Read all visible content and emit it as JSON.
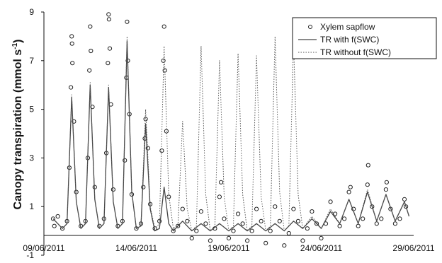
{
  "chart_data": {
    "type": "line",
    "title": "",
    "xlabel": "",
    "ylabel": "Canopy transpiration (mmol s",
    "ylabel_superscript": "-1",
    "ylabel_close": ")",
    "x_type": "date",
    "xlim": [
      "2011-06-09",
      "2011-06-29"
    ],
    "ylim": [
      -1,
      9
    ],
    "x_ticks": [
      "09/06/2011",
      "14/06/2011",
      "19/06/2011",
      "24/06/2011",
      "29/06/2011"
    ],
    "y_ticks": [
      "-1",
      "1",
      "3",
      "5",
      "7",
      "9"
    ],
    "grid": false,
    "legend_position": "top-right",
    "series": [
      {
        "name": "Xylem sapflow",
        "style": "circle-markers",
        "color": "#222222",
        "points": [
          [
            "2011-06-09T12:00",
            0.5
          ],
          [
            "2011-06-09T13:30",
            0.2
          ],
          [
            "2011-06-09T18:00",
            0.6
          ],
          [
            "2011-06-10T00:00",
            0.1
          ],
          [
            "2011-06-10T06:00",
            0.4
          ],
          [
            "2011-06-10T09:00",
            2.6
          ],
          [
            "2011-06-10T11:00",
            5.9
          ],
          [
            "2011-06-10T12:00",
            8.0
          ],
          [
            "2011-06-10T12:30",
            7.7
          ],
          [
            "2011-06-10T13:00",
            6.9
          ],
          [
            "2011-06-10T15:00",
            4.5
          ],
          [
            "2011-06-10T18:00",
            1.6
          ],
          [
            "2011-06-11T00:00",
            0.2
          ],
          [
            "2011-06-11T06:00",
            0.4
          ],
          [
            "2011-06-11T09:00",
            3.0
          ],
          [
            "2011-06-11T11:00",
            6.6
          ],
          [
            "2011-06-11T12:00",
            8.4
          ],
          [
            "2011-06-11T13:00",
            7.4
          ],
          [
            "2011-06-11T15:00",
            5.1
          ],
          [
            "2011-06-11T18:00",
            1.8
          ],
          [
            "2011-06-12T00:00",
            0.2
          ],
          [
            "2011-06-12T06:00",
            0.5
          ],
          [
            "2011-06-12T09:00",
            3.2
          ],
          [
            "2011-06-12T11:00",
            6.9
          ],
          [
            "2011-06-12T12:00",
            8.9
          ],
          [
            "2011-06-12T12:30",
            8.7
          ],
          [
            "2011-06-12T13:30",
            7.5
          ],
          [
            "2011-06-12T15:00",
            5.2
          ],
          [
            "2011-06-12T18:00",
            1.7
          ],
          [
            "2011-06-13T00:00",
            0.2
          ],
          [
            "2011-06-13T06:00",
            0.4
          ],
          [
            "2011-06-13T09:00",
            2.9
          ],
          [
            "2011-06-13T11:00",
            6.3
          ],
          [
            "2011-06-13T12:00",
            8.6
          ],
          [
            "2011-06-13T13:00",
            7.0
          ],
          [
            "2011-06-13T15:00",
            4.8
          ],
          [
            "2011-06-13T18:00",
            1.5
          ],
          [
            "2011-06-14T00:00",
            0.1
          ],
          [
            "2011-06-14T06:00",
            0.3
          ],
          [
            "2011-06-14T09:00",
            1.8
          ],
          [
            "2011-06-14T11:00",
            3.8
          ],
          [
            "2011-06-14T12:00",
            4.6
          ],
          [
            "2011-06-14T15:00",
            3.4
          ],
          [
            "2011-06-14T18:00",
            1.1
          ],
          [
            "2011-06-15T00:00",
            0.1
          ],
          [
            "2011-06-15T06:00",
            0.4
          ],
          [
            "2011-06-15T09:00",
            3.3
          ],
          [
            "2011-06-15T11:00",
            7.0
          ],
          [
            "2011-06-15T12:00",
            8.4
          ],
          [
            "2011-06-15T13:00",
            6.6
          ],
          [
            "2011-06-15T15:00",
            4.1
          ],
          [
            "2011-06-15T18:00",
            1.4
          ],
          [
            "2011-06-16T00:00",
            0.0
          ],
          [
            "2011-06-16T06:00",
            0.2
          ],
          [
            "2011-06-16T12:00",
            0.9
          ],
          [
            "2011-06-16T18:00",
            0.4
          ],
          [
            "2011-06-17T00:00",
            -0.3
          ],
          [
            "2011-06-17T06:00",
            0.0
          ],
          [
            "2011-06-17T12:00",
            0.8
          ],
          [
            "2011-06-17T18:00",
            0.3
          ],
          [
            "2011-06-18T00:00",
            -0.4
          ],
          [
            "2011-06-18T06:00",
            0.1
          ],
          [
            "2011-06-18T12:00",
            1.4
          ],
          [
            "2011-06-18T14:00",
            2.0
          ],
          [
            "2011-06-18T18:00",
            0.5
          ],
          [
            "2011-06-19T00:00",
            -0.3
          ],
          [
            "2011-06-19T06:00",
            0.0
          ],
          [
            "2011-06-19T12:00",
            0.7
          ],
          [
            "2011-06-19T18:00",
            0.3
          ],
          [
            "2011-06-20T00:00",
            -0.4
          ],
          [
            "2011-06-20T06:00",
            0.0
          ],
          [
            "2011-06-20T12:00",
            0.9
          ],
          [
            "2011-06-20T18:00",
            0.4
          ],
          [
            "2011-06-21T00:00",
            -0.5
          ],
          [
            "2011-06-21T06:00",
            0.0
          ],
          [
            "2011-06-21T12:00",
            1.0
          ],
          [
            "2011-06-21T18:00",
            0.4
          ],
          [
            "2011-06-22T00:00",
            -0.6
          ],
          [
            "2011-06-22T06:00",
            -0.1
          ],
          [
            "2011-06-22T12:00",
            0.9
          ],
          [
            "2011-06-22T18:00",
            0.4
          ],
          [
            "2011-06-23T00:00",
            -0.4
          ],
          [
            "2011-06-23T06:00",
            0.1
          ],
          [
            "2011-06-23T12:00",
            0.8
          ],
          [
            "2011-06-23T18:00",
            0.3
          ],
          [
            "2011-06-24T00:00",
            -0.3
          ],
          [
            "2011-06-24T06:00",
            0.3
          ],
          [
            "2011-06-24T12:00",
            1.2
          ],
          [
            "2011-06-24T18:00",
            0.7
          ],
          [
            "2011-06-25T00:00",
            0.2
          ],
          [
            "2011-06-25T06:00",
            0.5
          ],
          [
            "2011-06-25T12:00",
            1.6
          ],
          [
            "2011-06-25T14:00",
            1.8
          ],
          [
            "2011-06-25T18:00",
            0.9
          ],
          [
            "2011-06-26T00:00",
            0.2
          ],
          [
            "2011-06-26T06:00",
            0.5
          ],
          [
            "2011-06-26T12:00",
            1.9
          ],
          [
            "2011-06-26T13:00",
            2.7
          ],
          [
            "2011-06-26T18:00",
            1.0
          ],
          [
            "2011-06-27T00:00",
            0.3
          ],
          [
            "2011-06-27T06:00",
            0.5
          ],
          [
            "2011-06-27T12:00",
            1.7
          ],
          [
            "2011-06-27T13:00",
            2.0
          ],
          [
            "2011-06-27T18:00",
            0.9
          ],
          [
            "2011-06-28T00:00",
            0.3
          ],
          [
            "2011-06-28T06:00",
            0.5
          ],
          [
            "2011-06-28T12:00",
            1.3
          ],
          [
            "2011-06-28T14:00",
            1.0
          ]
        ]
      },
      {
        "name": "TR with f(SWC)",
        "style": "solid-line",
        "color": "#444444",
        "points": [
          [
            "2011-06-09T12:00",
            0.5
          ],
          [
            "2011-06-10T00:00",
            0.1
          ],
          [
            "2011-06-10T06:00",
            0.3
          ],
          [
            "2011-06-10T12:00",
            5.5
          ],
          [
            "2011-06-10T18:00",
            1.2
          ],
          [
            "2011-06-11T00:00",
            0.1
          ],
          [
            "2011-06-11T06:00",
            0.3
          ],
          [
            "2011-06-11T12:00",
            6.0
          ],
          [
            "2011-06-11T18:00",
            1.3
          ],
          [
            "2011-06-12T00:00",
            0.1
          ],
          [
            "2011-06-12T06:00",
            0.3
          ],
          [
            "2011-06-12T12:00",
            5.9
          ],
          [
            "2011-06-12T18:00",
            1.2
          ],
          [
            "2011-06-13T00:00",
            0.1
          ],
          [
            "2011-06-13T06:00",
            0.3
          ],
          [
            "2011-06-13T12:00",
            7.8
          ],
          [
            "2011-06-13T18:00",
            1.6
          ],
          [
            "2011-06-14T00:00",
            0.1
          ],
          [
            "2011-06-14T06:00",
            0.2
          ],
          [
            "2011-06-14T12:00",
            4.4
          ],
          [
            "2011-06-14T18:00",
            0.9
          ],
          [
            "2011-06-15T00:00",
            0.0
          ],
          [
            "2011-06-15T06:00",
            0.1
          ],
          [
            "2011-06-15T12:00",
            1.8
          ],
          [
            "2011-06-15T18:00",
            0.3
          ],
          [
            "2011-06-16T00:00",
            0.0
          ],
          [
            "2011-06-16T12:00",
            0.4
          ],
          [
            "2011-06-17T00:00",
            0.0
          ],
          [
            "2011-06-17T12:00",
            0.3
          ],
          [
            "2011-06-18T00:00",
            0.0
          ],
          [
            "2011-06-18T12:00",
            0.3
          ],
          [
            "2011-06-19T00:00",
            0.0
          ],
          [
            "2011-06-19T12:00",
            0.3
          ],
          [
            "2011-06-20T00:00",
            0.0
          ],
          [
            "2011-06-20T12:00",
            0.3
          ],
          [
            "2011-06-21T00:00",
            0.0
          ],
          [
            "2011-06-21T12:00",
            0.3
          ],
          [
            "2011-06-22T00:00",
            0.0
          ],
          [
            "2011-06-22T12:00",
            0.4
          ],
          [
            "2011-06-23T00:00",
            0.1
          ],
          [
            "2011-06-23T12:00",
            0.5
          ],
          [
            "2011-06-24T00:00",
            0.1
          ],
          [
            "2011-06-24T12:00",
            0.8
          ],
          [
            "2011-06-25T00:00",
            0.3
          ],
          [
            "2011-06-25T12:00",
            1.3
          ],
          [
            "2011-06-26T00:00",
            0.3
          ],
          [
            "2011-06-26T12:00",
            1.6
          ],
          [
            "2011-06-27T00:00",
            0.4
          ],
          [
            "2011-06-27T12:00",
            1.5
          ],
          [
            "2011-06-28T00:00",
            0.4
          ],
          [
            "2011-06-28T12:00",
            1.2
          ],
          [
            "2011-06-28T18:00",
            0.6
          ]
        ]
      },
      {
        "name": "TR without f(SWC)",
        "style": "dotted-line",
        "color": "#555555",
        "points": [
          [
            "2011-06-09T12:00",
            0.5
          ],
          [
            "2011-06-10T00:00",
            0.1
          ],
          [
            "2011-06-10T06:00",
            0.3
          ],
          [
            "2011-06-10T12:00",
            5.6
          ],
          [
            "2011-06-10T18:00",
            1.2
          ],
          [
            "2011-06-11T00:00",
            0.1
          ],
          [
            "2011-06-11T06:00",
            0.3
          ],
          [
            "2011-06-11T12:00",
            6.1
          ],
          [
            "2011-06-11T18:00",
            1.3
          ],
          [
            "2011-06-12T00:00",
            0.1
          ],
          [
            "2011-06-12T06:00",
            0.3
          ],
          [
            "2011-06-12T12:00",
            6.0
          ],
          [
            "2011-06-12T18:00",
            1.2
          ],
          [
            "2011-06-13T00:00",
            0.1
          ],
          [
            "2011-06-13T06:00",
            0.3
          ],
          [
            "2011-06-13T12:00",
            8.0
          ],
          [
            "2011-06-13T18:00",
            1.6
          ],
          [
            "2011-06-14T00:00",
            0.1
          ],
          [
            "2011-06-14T06:00",
            0.2
          ],
          [
            "2011-06-14T12:00",
            5.0
          ],
          [
            "2011-06-14T18:00",
            1.0
          ],
          [
            "2011-06-15T00:00",
            0.1
          ],
          [
            "2011-06-15T06:00",
            0.3
          ],
          [
            "2011-06-15T12:00",
            7.6
          ],
          [
            "2011-06-15T18:00",
            1.5
          ],
          [
            "2011-06-16T00:00",
            0.1
          ],
          [
            "2011-06-16T06:00",
            0.2
          ],
          [
            "2011-06-16T12:00",
            4.5
          ],
          [
            "2011-06-16T18:00",
            0.9
          ],
          [
            "2011-06-17T00:00",
            0.0
          ],
          [
            "2011-06-17T06:00",
            0.2
          ],
          [
            "2011-06-17T12:00",
            7.6
          ],
          [
            "2011-06-17T18:00",
            1.5
          ],
          [
            "2011-06-18T00:00",
            0.0
          ],
          [
            "2011-06-18T06:00",
            0.2
          ],
          [
            "2011-06-18T12:00",
            7.0
          ],
          [
            "2011-06-18T18:00",
            1.4
          ],
          [
            "2011-06-19T00:00",
            0.0
          ],
          [
            "2011-06-19T06:00",
            0.2
          ],
          [
            "2011-06-19T12:00",
            7.3
          ],
          [
            "2011-06-19T18:00",
            1.5
          ],
          [
            "2011-06-20T00:00",
            0.0
          ],
          [
            "2011-06-20T06:00",
            0.2
          ],
          [
            "2011-06-20T12:00",
            7.2
          ],
          [
            "2011-06-20T18:00",
            1.4
          ],
          [
            "2011-06-21T00:00",
            0.0
          ],
          [
            "2011-06-21T06:00",
            0.2
          ],
          [
            "2011-06-21T12:00",
            8.0
          ],
          [
            "2011-06-21T18:00",
            1.6
          ],
          [
            "2011-06-22T00:00",
            0.0
          ],
          [
            "2011-06-22T06:00",
            0.2
          ],
          [
            "2011-06-22T12:00",
            7.8
          ],
          [
            "2011-06-22T18:00",
            1.5
          ],
          [
            "2011-06-23T00:00",
            0.1
          ],
          [
            "2011-06-23T12:00",
            0.6
          ],
          [
            "2011-06-24T00:00",
            0.1
          ],
          [
            "2011-06-24T12:00",
            0.9
          ],
          [
            "2011-06-25T00:00",
            0.3
          ],
          [
            "2011-06-25T12:00",
            1.3
          ],
          [
            "2011-06-26T00:00",
            0.3
          ],
          [
            "2011-06-26T12:00",
            1.7
          ],
          [
            "2011-06-27T00:00",
            0.4
          ],
          [
            "2011-06-27T12:00",
            1.5
          ],
          [
            "2011-06-28T00:00",
            0.4
          ],
          [
            "2011-06-28T12:00",
            1.2
          ],
          [
            "2011-06-28T18:00",
            0.6
          ]
        ]
      }
    ]
  }
}
